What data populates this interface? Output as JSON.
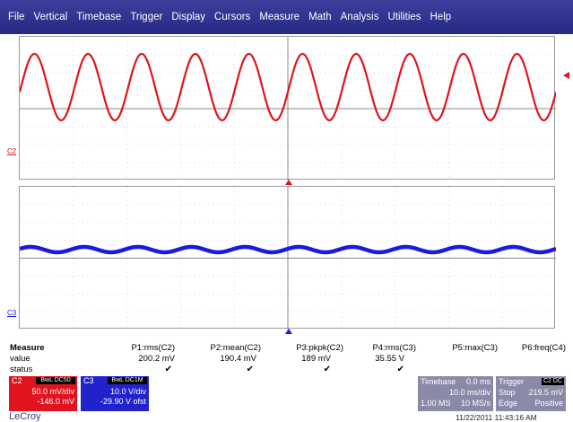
{
  "menu": [
    "File",
    "Vertical",
    "Timebase",
    "Trigger",
    "Display",
    "Cursors",
    "Measure",
    "Math",
    "Analysis",
    "Utilities",
    "Help"
  ],
  "traces": {
    "c2": {
      "label": "C2",
      "color": "#e0141e",
      "cycles": 10
    },
    "c3": {
      "label": "C3",
      "color": "#1a1ae0",
      "cycles": 10
    }
  },
  "measure": {
    "title": "Measure",
    "row_value": "value",
    "row_status": "status",
    "params": [
      {
        "name": "P1:rms(C2)",
        "value": "200.2 mV",
        "status": "✔"
      },
      {
        "name": "P2:mean(C2)",
        "value": "190.4 mV",
        "status": "✔"
      },
      {
        "name": "P3:pkpk(C2)",
        "value": "189 mV",
        "status": "✔"
      },
      {
        "name": "P4:rms(C3)",
        "value": "35.55 V",
        "status": "✔"
      },
      {
        "name": "P5:max(C3)",
        "value": "",
        "status": ""
      },
      {
        "name": "P6:freq(C4)",
        "value": "",
        "status": ""
      }
    ]
  },
  "channels": {
    "c2": {
      "name": "C2",
      "tag": "BwL DC50",
      "vdiv": "50.0 mV/div",
      "offset": "-146.0 mV"
    },
    "c3": {
      "name": "C3",
      "tag": "BwL DC1M",
      "vdiv": "10.0 V/div",
      "offset": "-29.90 V ofst"
    }
  },
  "timebase": {
    "label": "Timebase",
    "delay": "0.0 ms",
    "tdiv": "10.0 ms/div",
    "samples": "1.00 MS",
    "rate": "10 MS/s"
  },
  "trigger": {
    "label": "Trigger",
    "tag": "C2 DC",
    "mode": "Stop",
    "level": "219.5 mV",
    "type": "Edge",
    "slope": "Positive"
  },
  "logo": "LeCroy",
  "datetime": "11/22/2011 11:43:16 AM"
}
